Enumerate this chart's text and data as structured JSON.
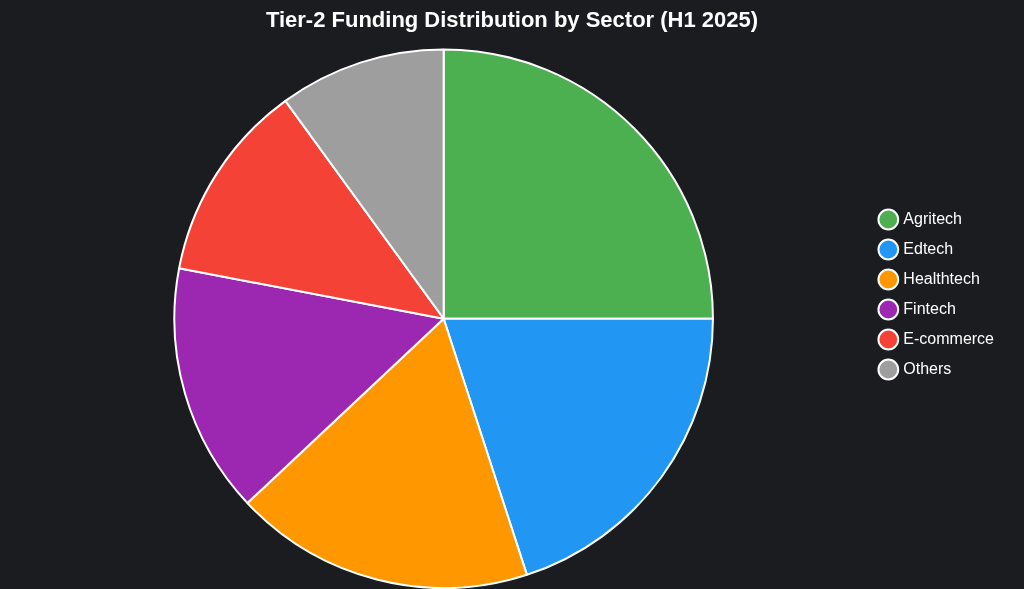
{
  "chart_data": {
    "type": "pie",
    "title": "Tier-2 Funding Distribution by Sector (H1 2025)",
    "categories": [
      "Agritech",
      "Edtech",
      "Healthtech",
      "Fintech",
      "E-commerce",
      "Others"
    ],
    "values": [
      25,
      20,
      18,
      15,
      12,
      10
    ],
    "colors": [
      "#4caf50",
      "#2196f3",
      "#ff9800",
      "#9c27b0",
      "#f44336",
      "#9e9e9e"
    ],
    "legend": "right"
  }
}
